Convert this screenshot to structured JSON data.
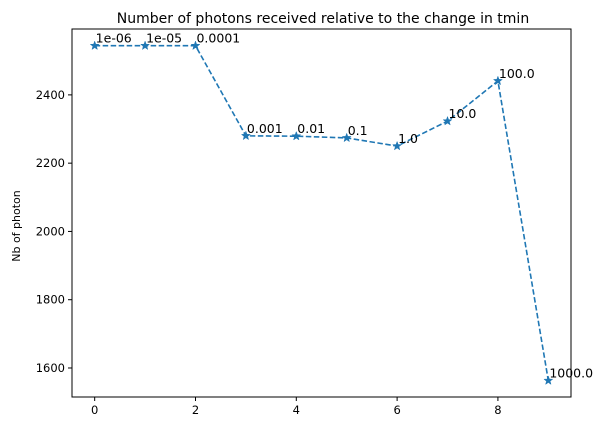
{
  "chart_data": {
    "type": "line",
    "title": "Number of photons received relative to the change in tmin",
    "xlabel": "",
    "ylabel": "Nb of photon",
    "x": [
      0,
      1,
      2,
      3,
      4,
      5,
      6,
      7,
      8,
      9
    ],
    "series": [
      {
        "values": [
          2544,
          2544,
          2544,
          2280,
          2279,
          2274,
          2250,
          2323,
          2441,
          1563
        ],
        "color": "#1f77b4",
        "line_style": "dashed",
        "marker": "star"
      }
    ],
    "point_labels": [
      "1e-06",
      "1e-05",
      "0.0001",
      "0.001",
      "0.01",
      "0.1",
      "1.0",
      "10.0",
      "100.0",
      "1000.0"
    ],
    "xlim": [
      -0.45,
      9.45
    ],
    "ylim": [
      1515,
      2593
    ],
    "xticks": [
      0,
      2,
      4,
      6,
      8
    ],
    "yticks": [
      1600,
      1800,
      2000,
      2200,
      2400
    ],
    "grid": false,
    "legend": "none"
  }
}
